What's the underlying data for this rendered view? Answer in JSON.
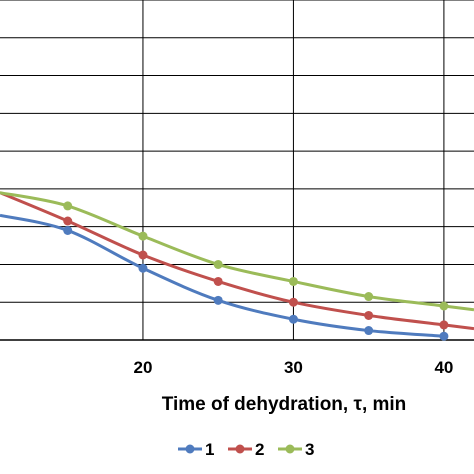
{
  "chart_data": {
    "type": "line",
    "xlabel": "Time of dehydration, τ, min",
    "xlim": [
      10.5,
      42
    ],
    "ylim": [
      0,
      9
    ],
    "x_ticks": [
      20,
      30,
      40
    ],
    "grid": true,
    "legend_position": "bottom",
    "series": [
      {
        "name": "1",
        "color": "#4F7BBE",
        "x": [
          10.5,
          15,
          20,
          25,
          30,
          35,
          40
        ],
        "y": [
          3.3,
          2.9,
          1.9,
          1.05,
          0.55,
          0.25,
          0.1
        ]
      },
      {
        "name": "2",
        "color": "#C0504D",
        "x": [
          10.5,
          15,
          20,
          25,
          30,
          35,
          40,
          42
        ],
        "y": [
          3.9,
          3.15,
          2.25,
          1.55,
          1.0,
          0.65,
          0.4,
          0.3
        ]
      },
      {
        "name": "3",
        "color": "#9BBB59",
        "x": [
          10.5,
          15,
          20,
          25,
          30,
          35,
          40,
          42
        ],
        "y": [
          3.9,
          3.55,
          2.75,
          2.0,
          1.55,
          1.15,
          0.9,
          0.8
        ]
      }
    ]
  }
}
